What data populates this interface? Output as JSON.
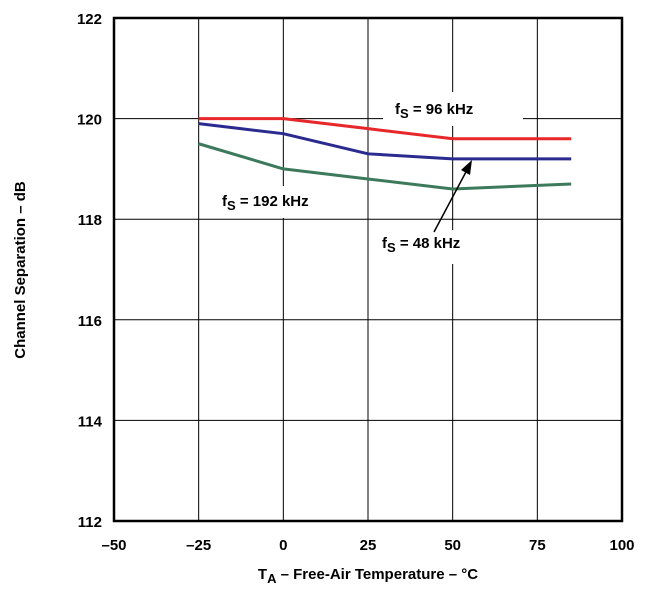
{
  "chart_data": {
    "type": "line",
    "xlabel": {
      "main": "T",
      "sub": "A",
      "rest": " – Free-Air Temperature – °C"
    },
    "ylabel": "Channel Separation – dB",
    "xlim": [
      -50,
      100
    ],
    "ylim": [
      112,
      122
    ],
    "x_ticks": [
      "–50",
      "–25",
      "0",
      "25",
      "50",
      "75",
      "100"
    ],
    "y_ticks": [
      "112",
      "114",
      "116",
      "118",
      "120",
      "122"
    ],
    "grid": true,
    "x": [
      -25,
      0,
      25,
      50,
      85
    ],
    "series": [
      {
        "name": "96 kHz",
        "color": "#e8272b",
        "values": [
          120.0,
          120.0,
          119.8,
          119.6,
          119.6
        ]
      },
      {
        "name": "48 kHz",
        "color": "#2b2a8f",
        "values": [
          119.9,
          119.7,
          119.3,
          119.2,
          119.2
        ]
      },
      {
        "name": "192 kHz",
        "color": "#3d7a5c",
        "values": [
          119.5,
          119.0,
          118.8,
          118.6,
          118.7
        ]
      }
    ],
    "annotations": [
      {
        "series": "96 kHz",
        "prefix": "f",
        "sub": "S",
        "text": " = 96 kHz"
      },
      {
        "series": "192 kHz",
        "prefix": "f",
        "sub": "S",
        "text": " = 192 kHz"
      },
      {
        "series": "48 kHz",
        "prefix": "f",
        "sub": "S",
        "text": " = 48 kHz"
      }
    ]
  }
}
